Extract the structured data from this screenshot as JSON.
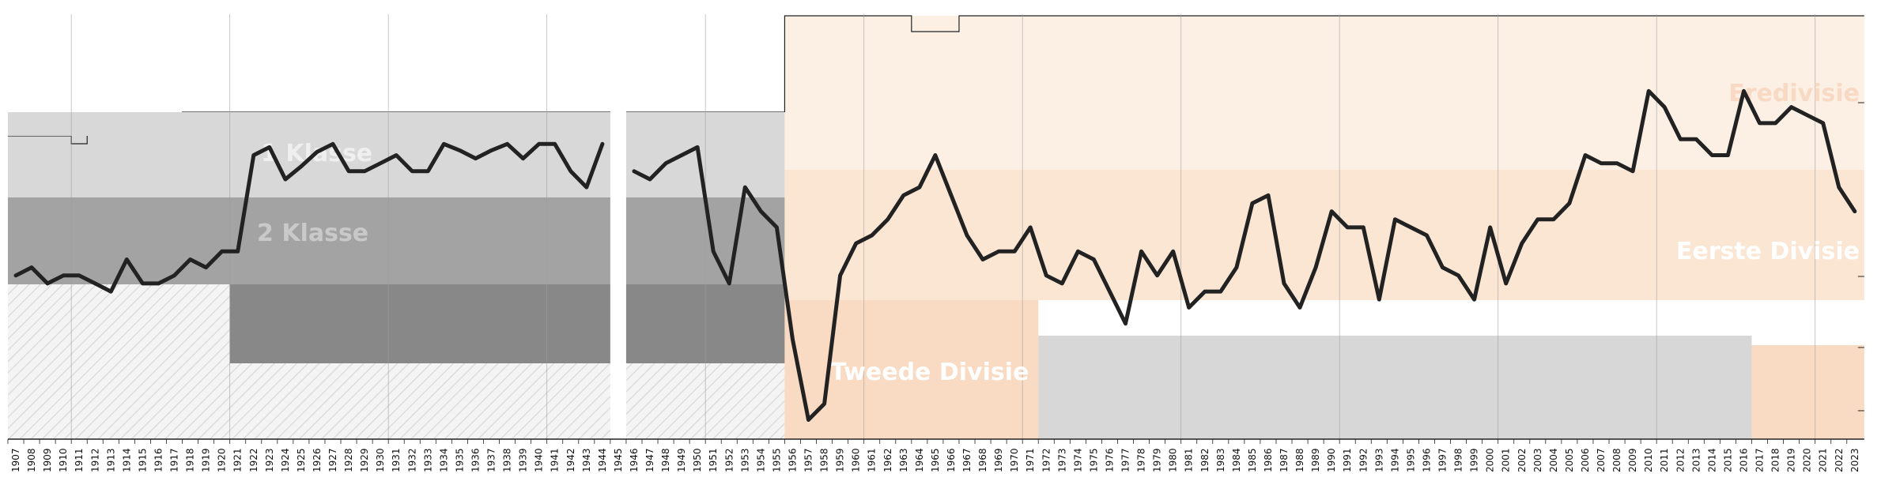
{
  "chart_data": {
    "type": "line",
    "title": "",
    "xlabel": "",
    "ylabel": "",
    "x_start": 1907,
    "x_end": 2023,
    "grid_years": [
      1910,
      1920,
      1930,
      1940,
      1950,
      1960,
      1970,
      1980,
      1990,
      2000,
      2010,
      2020
    ],
    "legend_position": "none",
    "colors": {
      "top_band_1": "#d8d8d8",
      "mid_band_1": "#a3a3a3",
      "low_band_1": "#888888",
      "top_band_2": "#fcefe4",
      "mid_band_2": "#fbe6d4",
      "low_band_2": "#f9dbc4",
      "light_grey": "#d7d7d7",
      "line": "#222222"
    },
    "era_break_year": 1956,
    "missing_years": [
      1945
    ],
    "league_labels": {
      "era1_top": "1 Klasse",
      "era1_second": "2 Klasse",
      "era2_top": "Eredivisie",
      "era2_second": "Eerste Divisie",
      "era2_third": "Tweede Divisie"
    },
    "series": [
      {
        "values": [
          [
            1907,
            12.5
          ],
          [
            1908,
            12.0
          ],
          [
            1909,
            13.0
          ],
          [
            1910,
            12.5
          ],
          [
            1911,
            12.5
          ],
          [
            1912,
            13.0
          ],
          [
            1913,
            13.5
          ],
          [
            1914,
            11.5
          ],
          [
            1915,
            13.0
          ],
          [
            1916,
            13.0
          ],
          [
            1917,
            12.5
          ],
          [
            1918,
            11.5
          ],
          [
            1919,
            12.0
          ],
          [
            1920,
            11.0
          ],
          [
            1921,
            11.0
          ],
          [
            1922,
            5.0
          ],
          [
            1923,
            4.5
          ],
          [
            1924,
            6.5
          ],
          [
            1925,
            5.7
          ],
          [
            1926,
            4.8
          ],
          [
            1927,
            4.3
          ],
          [
            1928,
            6.0
          ],
          [
            1929,
            6.0
          ],
          [
            1930,
            5.5
          ],
          [
            1931,
            5.0
          ],
          [
            1932,
            6.0
          ],
          [
            1933,
            6.0
          ],
          [
            1934,
            4.3
          ],
          [
            1935,
            4.7
          ],
          [
            1936,
            5.2
          ],
          [
            1937,
            4.7
          ],
          [
            1938,
            4.3
          ],
          [
            1939,
            5.2
          ],
          [
            1940,
            4.3
          ],
          [
            1941,
            4.3
          ],
          [
            1942,
            6.0
          ],
          [
            1943,
            7.0
          ],
          [
            1944,
            4.3
          ],
          [
            1945,
            null
          ],
          [
            1946,
            6.0
          ],
          [
            1947,
            6.5
          ],
          [
            1948,
            5.5
          ],
          [
            1949,
            5.0
          ],
          [
            1950,
            4.5
          ],
          [
            1951,
            11.0
          ],
          [
            1952,
            13.0
          ],
          [
            1953,
            7.0
          ],
          [
            1954,
            8.5
          ],
          [
            1955,
            9.5
          ],
          [
            1956,
            16.5
          ],
          [
            1957,
            21.5
          ],
          [
            1958,
            20.5
          ],
          [
            1959,
            12.5
          ],
          [
            1960,
            10.5
          ],
          [
            1961,
            10.0
          ],
          [
            1962,
            9.0
          ],
          [
            1963,
            7.5
          ],
          [
            1964,
            7.0
          ],
          [
            1965,
            5.0
          ],
          [
            1966,
            7.5
          ],
          [
            1967,
            10.0
          ],
          [
            1968,
            11.5
          ],
          [
            1969,
            11.0
          ],
          [
            1970,
            11.0
          ],
          [
            1971,
            9.5
          ],
          [
            1972,
            12.5
          ],
          [
            1973,
            13.0
          ],
          [
            1974,
            11.0
          ],
          [
            1975,
            11.5
          ],
          [
            1976,
            13.5
          ],
          [
            1977,
            15.5
          ],
          [
            1978,
            11.0
          ],
          [
            1979,
            12.5
          ],
          [
            1980,
            11.0
          ],
          [
            1981,
            14.5
          ],
          [
            1982,
            13.5
          ],
          [
            1983,
            13.5
          ],
          [
            1984,
            12.0
          ],
          [
            1985,
            8.0
          ],
          [
            1986,
            7.5
          ],
          [
            1987,
            13.0
          ],
          [
            1988,
            14.5
          ],
          [
            1989,
            12.0
          ],
          [
            1990,
            8.5
          ],
          [
            1991,
            9.5
          ],
          [
            1992,
            9.5
          ],
          [
            1993,
            14.0
          ],
          [
            1994,
            9.0
          ],
          [
            1995,
            9.5
          ],
          [
            1996,
            10.0
          ],
          [
            1997,
            12.0
          ],
          [
            1998,
            12.5
          ],
          [
            1999,
            14.0
          ],
          [
            2000,
            9.5
          ],
          [
            2001,
            13.0
          ],
          [
            2002,
            10.5
          ],
          [
            2003,
            9.0
          ],
          [
            2004,
            9.0
          ],
          [
            2005,
            8.0
          ],
          [
            2006,
            5.0
          ],
          [
            2007,
            5.5
          ],
          [
            2008,
            5.5
          ],
          [
            2009,
            6.0
          ],
          [
            2010,
            1.0
          ],
          [
            2011,
            2.0
          ],
          [
            2012,
            4.0
          ],
          [
            2013,
            4.0
          ],
          [
            2014,
            5.0
          ],
          [
            2015,
            5.0
          ],
          [
            2016,
            1.0
          ],
          [
            2017,
            3.0
          ],
          [
            2018,
            3.0
          ],
          [
            2019,
            2.0
          ],
          [
            2020,
            2.5
          ],
          [
            2021,
            3.0
          ],
          [
            2022,
            7.0
          ],
          [
            2023,
            8.5
          ]
        ]
      }
    ]
  }
}
